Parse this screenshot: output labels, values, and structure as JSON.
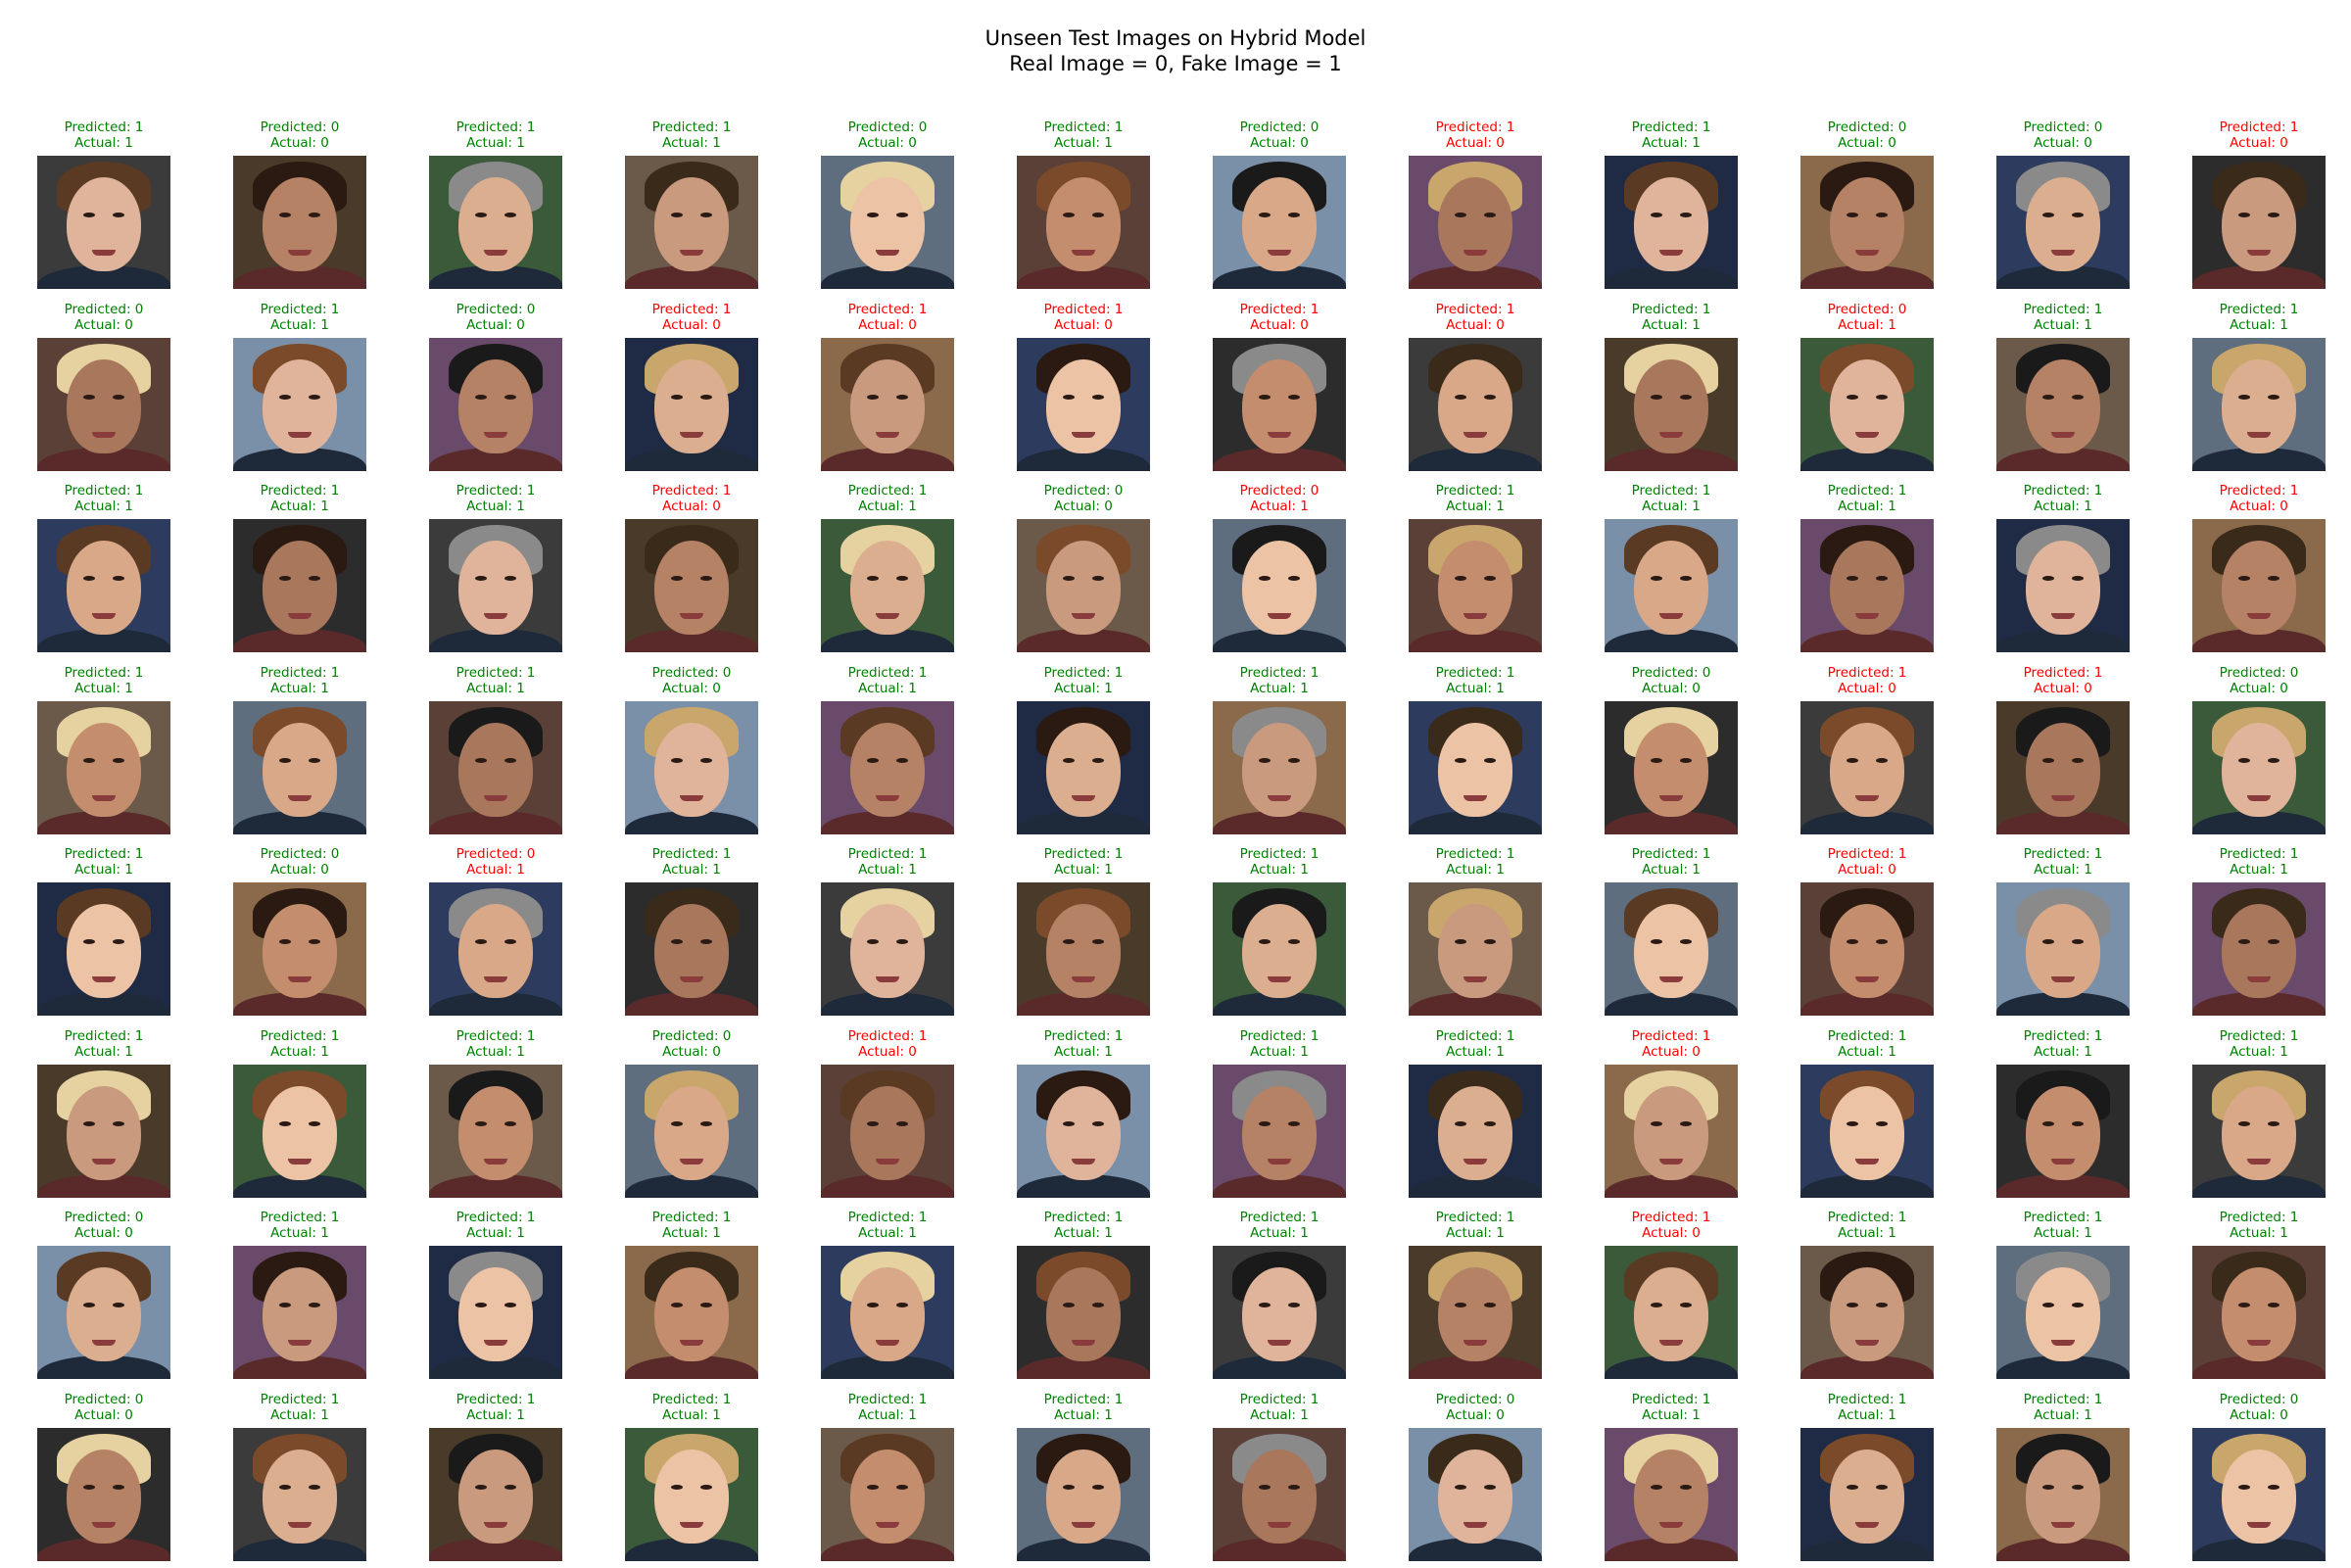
{
  "title": {
    "line1": "Unseen Test Images on Hybrid Model",
    "line2": "Real Image = 0, Fake Image = 1"
  },
  "colors": {
    "correct": "#008000",
    "incorrect": "#ff0000"
  },
  "grid": {
    "rows": 8,
    "cols": 12,
    "predicted_prefix": "Predicted: ",
    "actual_prefix": "Actual: ",
    "cells": [
      [
        [
          1,
          1
        ],
        [
          0,
          0
        ],
        [
          1,
          1
        ],
        [
          1,
          1
        ],
        [
          0,
          0
        ],
        [
          1,
          1
        ],
        [
          0,
          0
        ],
        [
          1,
          0
        ],
        [
          1,
          1
        ],
        [
          0,
          0
        ],
        [
          0,
          0
        ],
        [
          1,
          0
        ]
      ],
      [
        [
          0,
          0
        ],
        [
          1,
          1
        ],
        [
          0,
          0
        ],
        [
          1,
          0
        ],
        [
          1,
          0
        ],
        [
          1,
          0
        ],
        [
          1,
          0
        ],
        [
          1,
          0
        ],
        [
          1,
          1
        ],
        [
          0,
          1
        ],
        [
          1,
          1
        ],
        [
          1,
          1
        ]
      ],
      [
        [
          1,
          1
        ],
        [
          1,
          1
        ],
        [
          1,
          1
        ],
        [
          1,
          0
        ],
        [
          1,
          1
        ],
        [
          0,
          0
        ],
        [
          0,
          1
        ],
        [
          1,
          1
        ],
        [
          1,
          1
        ],
        [
          1,
          1
        ],
        [
          1,
          1
        ],
        [
          1,
          0
        ]
      ],
      [
        [
          1,
          1
        ],
        [
          1,
          1
        ],
        [
          1,
          1
        ],
        [
          0,
          0
        ],
        [
          1,
          1
        ],
        [
          1,
          1
        ],
        [
          1,
          1
        ],
        [
          1,
          1
        ],
        [
          0,
          0
        ],
        [
          1,
          0
        ],
        [
          1,
          0
        ],
        [
          0,
          0
        ]
      ],
      [
        [
          1,
          1
        ],
        [
          0,
          0
        ],
        [
          0,
          1
        ],
        [
          1,
          1
        ],
        [
          1,
          1
        ],
        [
          1,
          1
        ],
        [
          1,
          1
        ],
        [
          1,
          1
        ],
        [
          1,
          1
        ],
        [
          1,
          0
        ],
        [
          1,
          1
        ],
        [
          1,
          1
        ]
      ],
      [
        [
          1,
          1
        ],
        [
          1,
          1
        ],
        [
          1,
          1
        ],
        [
          0,
          0
        ],
        [
          1,
          0
        ],
        [
          1,
          1
        ],
        [
          1,
          1
        ],
        [
          1,
          1
        ],
        [
          1,
          0
        ],
        [
          1,
          1
        ],
        [
          1,
          1
        ],
        [
          1,
          1
        ]
      ],
      [
        [
          0,
          0
        ],
        [
          1,
          1
        ],
        [
          1,
          1
        ],
        [
          1,
          1
        ],
        [
          1,
          1
        ],
        [
          1,
          1
        ],
        [
          1,
          1
        ],
        [
          1,
          1
        ],
        [
          1,
          0
        ],
        [
          1,
          1
        ],
        [
          1,
          1
        ],
        [
          1,
          1
        ]
      ],
      [
        [
          0,
          0
        ],
        [
          1,
          1
        ],
        [
          1,
          1
        ],
        [
          1,
          1
        ],
        [
          1,
          1
        ],
        [
          1,
          1
        ],
        [
          1,
          1
        ],
        [
          0,
          0
        ],
        [
          1,
          1
        ],
        [
          1,
          1
        ],
        [
          1,
          1
        ],
        [
          0,
          0
        ]
      ]
    ]
  }
}
